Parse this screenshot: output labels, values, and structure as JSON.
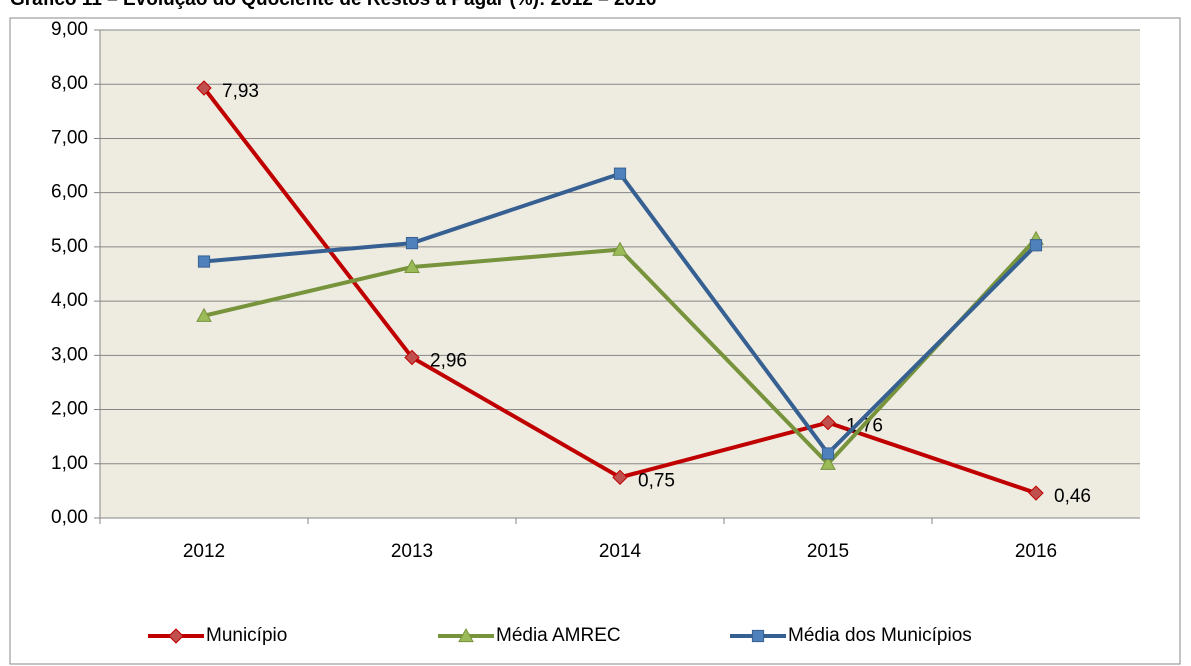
{
  "chart_data": {
    "type": "line",
    "title": "Gráfico 11 – Evolução do Quociente de Restos a Pagar (%): 2012 – 2016",
    "categories": [
      "2012",
      "2013",
      "2014",
      "2015",
      "2016"
    ],
    "series": [
      {
        "name": "Município",
        "color": "#c0504d",
        "line_color": "#c00000",
        "marker": "diamond",
        "values": [
          7.93,
          2.96,
          0.75,
          1.76,
          0.46
        ],
        "value_labels": [
          "7,93",
          "2,96",
          "0,75",
          "1,76",
          "0,46"
        ]
      },
      {
        "name": "Média AMREC",
        "color": "#9bbb59",
        "line_color": "#77933c",
        "marker": "triangle",
        "values": [
          3.73,
          4.63,
          4.95,
          1.0,
          5.15
        ]
      },
      {
        "name": "Média dos Municípios",
        "color": "#4f81bd",
        "line_color": "#376092",
        "marker": "square",
        "values": [
          4.73,
          5.07,
          6.35,
          1.19,
          5.03
        ]
      }
    ],
    "ylim": [
      0,
      9
    ],
    "yticks": [
      {
        "value": 0,
        "label": "0,00"
      },
      {
        "value": 1,
        "label": "1,00"
      },
      {
        "value": 2,
        "label": "2,00"
      },
      {
        "value": 3,
        "label": "3,00"
      },
      {
        "value": 4,
        "label": "4,00"
      },
      {
        "value": 5,
        "label": "5,00"
      },
      {
        "value": 6,
        "label": "6,00"
      },
      {
        "value": 7,
        "label": "7,00"
      },
      {
        "value": 8,
        "label": "8,00"
      },
      {
        "value": 9,
        "label": "9,00"
      }
    ],
    "grid": true,
    "legend": "bottom",
    "plot_background": "#eeece1"
  }
}
